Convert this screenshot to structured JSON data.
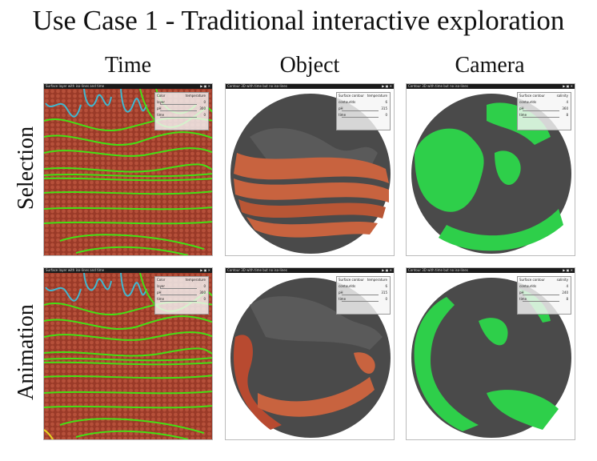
{
  "title": "Use Case 1 - Traditional interactive exploration",
  "columns": [
    "Time",
    "Object",
    "Camera"
  ],
  "rows": [
    "Selection",
    "Animation"
  ],
  "colors": {
    "terrain_red": "#9a3a28",
    "contour_green": "#44e014",
    "contour_cyan": "#3fb8d0",
    "globe_gray": "#4a4a4a",
    "surface_orange": "#c8633f",
    "surface_green": "#2ecf4a"
  },
  "panels": {
    "time_selection": {
      "window_title": "Surface layer with iso-lines and time",
      "controls": [
        {
          "label": "Color",
          "value": "temperature"
        },
        {
          "label": "layer",
          "value": "0"
        },
        {
          "label": "pH",
          "value": "300"
        },
        {
          "label": "time",
          "value": "0"
        }
      ]
    },
    "object_selection": {
      "window_title": "Contour 3D with time but no iso-lines",
      "controls": [
        {
          "label": "Surface contour",
          "value": "temperature"
        },
        {
          "label": "contourIds",
          "value": "6"
        },
        {
          "label": "pH",
          "value": "315"
        },
        {
          "label": "time",
          "value": "0"
        }
      ]
    },
    "camera_selection": {
      "window_title": "Contour 3D with time but no iso-lines",
      "controls": [
        {
          "label": "Surface contour",
          "value": "salinity"
        },
        {
          "label": "contourIds",
          "value": "4"
        },
        {
          "label": "pH",
          "value": "360"
        },
        {
          "label": "time",
          "value": "8"
        }
      ]
    },
    "time_animation": {
      "window_title": "Surface layer with iso-lines and time",
      "controls": [
        {
          "label": "Color",
          "value": "temperature"
        },
        {
          "label": "layer",
          "value": "0"
        },
        {
          "label": "pH",
          "value": "300"
        },
        {
          "label": "time",
          "value": "0"
        }
      ]
    },
    "object_animation": {
      "window_title": "Contour 3D with time but no iso-lines",
      "controls": [
        {
          "label": "Surface contour",
          "value": "temperature"
        },
        {
          "label": "contourIds",
          "value": "6"
        },
        {
          "label": "pH",
          "value": "315"
        },
        {
          "label": "time",
          "value": "0"
        }
      ]
    },
    "camera_animation": {
      "window_title": "Contour 3D with time but no iso-lines",
      "controls": [
        {
          "label": "Surface contour",
          "value": "salinity"
        },
        {
          "label": "contourIds",
          "value": "4"
        },
        {
          "label": "pH",
          "value": "240"
        },
        {
          "label": "time",
          "value": "8"
        }
      ]
    }
  }
}
